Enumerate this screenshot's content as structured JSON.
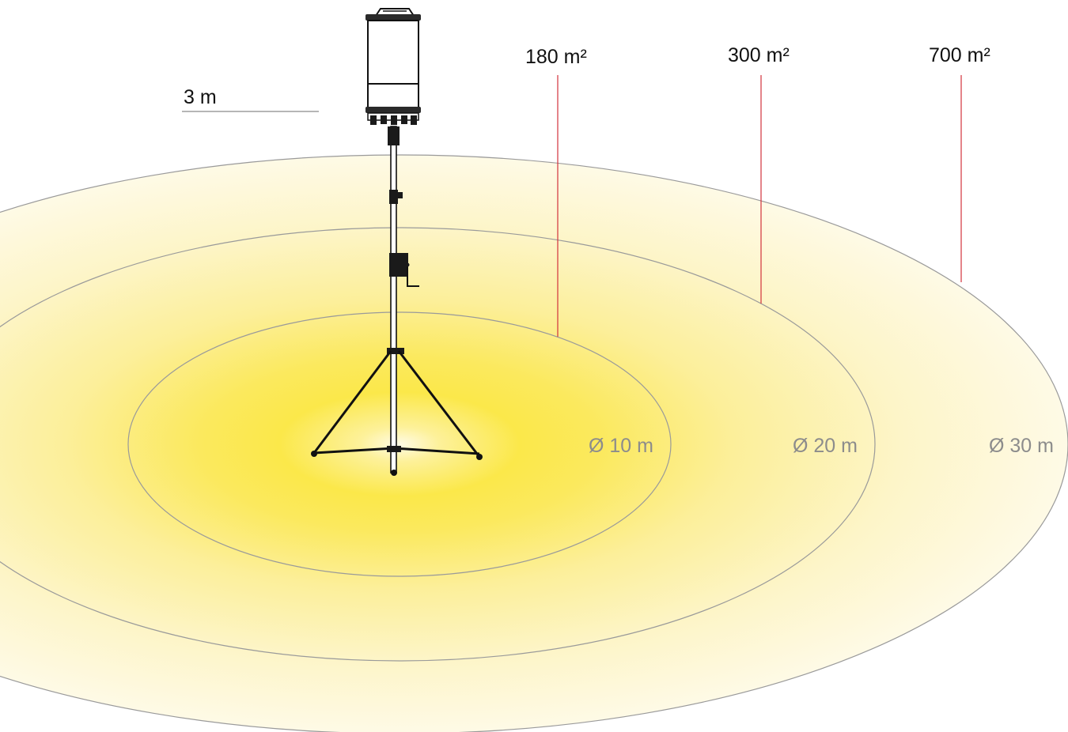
{
  "height_label": "3 m",
  "areas": [
    {
      "label": "180 m²"
    },
    {
      "label": "300 m²"
    },
    {
      "label": "700 m²"
    }
  ],
  "diameters": [
    {
      "label": "Ø 10 m"
    },
    {
      "label": "Ø 20 m"
    },
    {
      "label": "Ø 30 m"
    }
  ],
  "colors": {
    "light_core": "#fff7c8",
    "light_mid": "#fbe84a",
    "light_outer": "#fdf3c2",
    "ring_stroke": "#9a9a9a",
    "leader_line": "#d2323c",
    "area_text": "#111111",
    "diameter_text": "#8c8c8c"
  },
  "icons": [
    "lamp-head-icon",
    "tripod-stand-icon",
    "crank-handle-icon"
  ]
}
